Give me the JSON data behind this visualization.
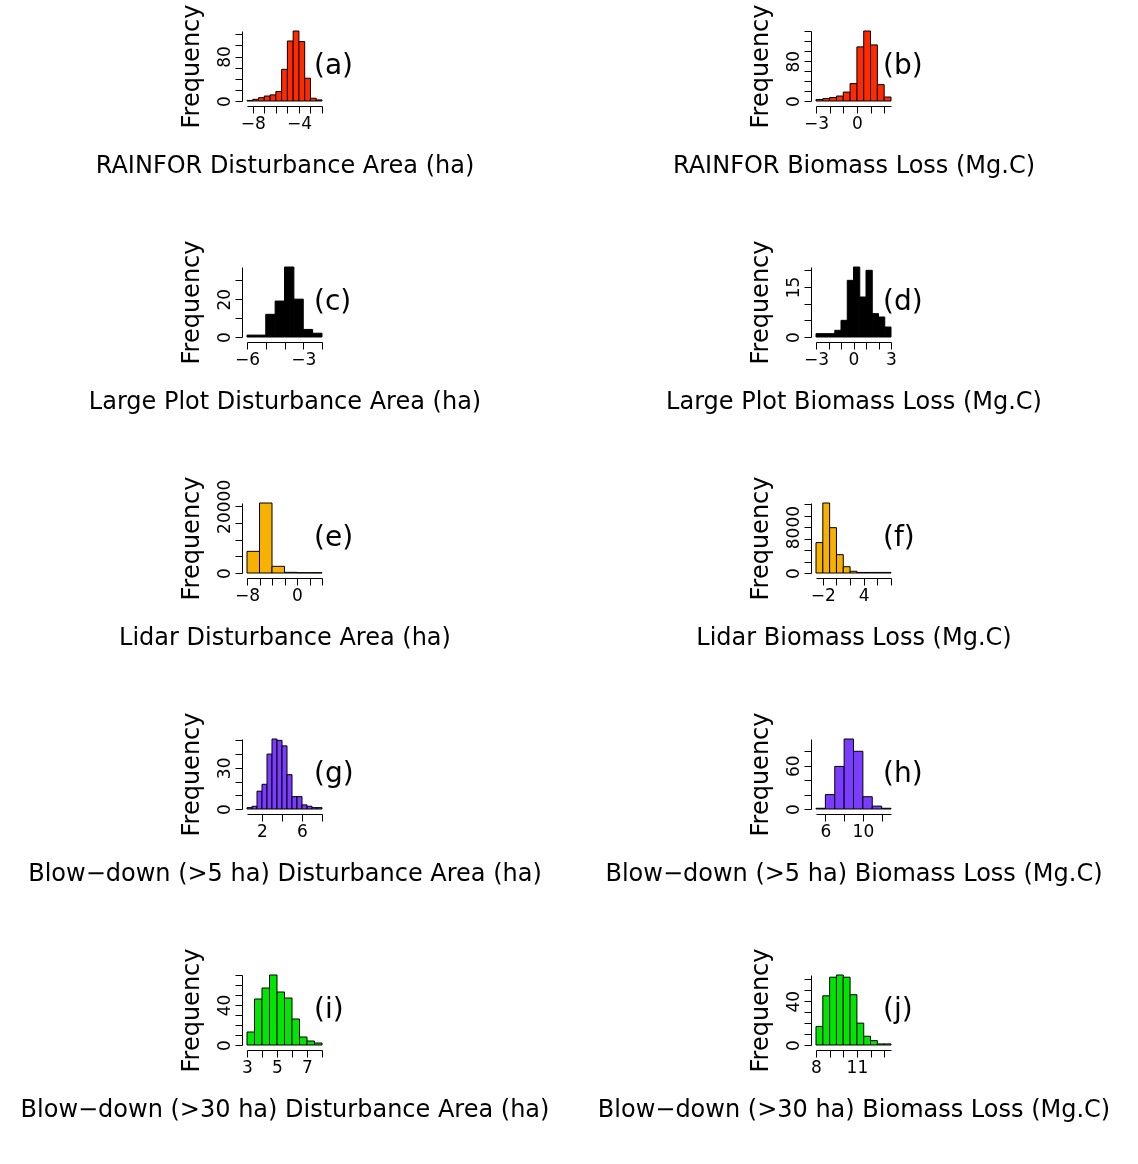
{
  "chart_data": [
    {
      "type": "histogram",
      "xlabel": "RAINFOR Disturbance Area (ha)",
      "ylabel": "Frequency",
      "annotations": [
        "(a)"
      ],
      "bins": [
        -8.5,
        -8,
        -7.5,
        -7,
        -6.5,
        -6,
        -5.5,
        -5,
        -4.5,
        -4,
        -3.5,
        -3,
        -2.5,
        -2
      ],
      "series": [
        {
          "color": "#ff2a00",
          "values": [
            1,
            3,
            6,
            9,
            11,
            17,
            57,
            108,
            126,
            107,
            41,
            5,
            2
          ]
        }
      ],
      "xlim": [
        -8.5,
        -2
      ],
      "ylim": [
        0,
        126
      ],
      "xticks": [
        {
          "value": -8,
          "label": "−8"
        },
        {
          "value": -7,
          "label": null
        },
        {
          "value": -6,
          "label": null
        },
        {
          "value": -5,
          "label": null
        },
        {
          "value": -4,
          "label": "−4"
        },
        {
          "value": -3,
          "label": null
        },
        {
          "value": -2,
          "label": null
        }
      ],
      "yticks": [
        0,
        {
          "value": 20,
          "label": null
        },
        {
          "value": 40,
          "label": null
        },
        {
          "value": 60,
          "label": null
        },
        80,
        {
          "value": 100,
          "label": null
        },
        {
          "value": 120,
          "label": null
        }
      ]
    },
    {
      "type": "histogram",
      "xlabel": "RAINFOR Biomass Loss (Mg.C)",
      "ylabel": "Frequency",
      "annotations": [
        "(b)"
      ],
      "bins": [
        -3,
        -2.5,
        -2,
        -1.5,
        -1,
        -0.5,
        0,
        0.5,
        1,
        1.5,
        2,
        2.5
      ],
      "series": [
        {
          "color": "#ff2a00",
          "values": [
            3,
            5,
            7,
            10,
            18,
            35,
            109,
            141,
            113,
            33,
            8
          ]
        }
      ],
      "xlim": [
        -3,
        2.5
      ],
      "ylim": [
        0,
        141
      ],
      "xticks": [
        {
          "value": -3,
          "label": "−3"
        },
        {
          "value": -2,
          "label": null
        },
        {
          "value": -1,
          "label": null
        },
        0,
        {
          "value": 1,
          "label": null
        },
        {
          "value": 2,
          "label": null
        }
      ],
      "yticks": [
        0,
        {
          "value": 20,
          "label": null
        },
        {
          "value": 40,
          "label": null
        },
        {
          "value": 60,
          "label": null
        },
        80,
        {
          "value": 100,
          "label": null
        },
        {
          "value": 120,
          "label": null
        },
        {
          "value": 140,
          "label": null
        }
      ]
    },
    {
      "type": "histogram",
      "xlabel": "Large Plot Disturbance Area (ha)",
      "ylabel": "Frequency",
      "annotations": [
        "(c)"
      ],
      "bins": [
        -6,
        -5.5,
        -5,
        -4.5,
        -4,
        -3.5,
        -3,
        -2.5,
        -2
      ],
      "series": [
        {
          "color": "#000000",
          "values": [
            1,
            1,
            12,
            19,
            37,
            20,
            4,
            2
          ]
        }
      ],
      "xlim": [
        -6,
        -2
      ],
      "ylim": [
        0,
        37
      ],
      "xticks": [
        {
          "value": -6,
          "label": "−6"
        },
        {
          "value": -5,
          "label": null
        },
        {
          "value": -4,
          "label": null
        },
        {
          "value": -3,
          "label": "−3"
        },
        {
          "value": -2,
          "label": null
        }
      ],
      "yticks": [
        0,
        {
          "value": 10,
          "label": null
        },
        20,
        {
          "value": 30,
          "label": null
        }
      ]
    },
    {
      "type": "histogram",
      "xlabel": "Large Plot Biomass Loss (Mg.C)",
      "ylabel": "Frequency",
      "annotations": [
        "(d)"
      ],
      "bins": [
        -3,
        -2.5,
        -2,
        -1.5,
        -1,
        -0.5,
        0,
        0.5,
        1,
        1.5,
        2,
        2.5,
        3
      ],
      "series": [
        {
          "color": "#000000",
          "values": [
            1,
            1,
            1,
            2,
            5,
            17,
            21,
            12,
            20,
            7,
            6,
            3
          ]
        }
      ],
      "xlim": [
        -3,
        3
      ],
      "ylim": [
        0,
        21
      ],
      "xticks": [
        {
          "value": -3,
          "label": "−3"
        },
        {
          "value": -2,
          "label": null
        },
        {
          "value": -1,
          "label": null
        },
        0,
        {
          "value": 1,
          "label": null
        },
        {
          "value": 2,
          "label": null
        },
        3
      ],
      "yticks": [
        0,
        {
          "value": 5,
          "label": null
        },
        {
          "value": 10,
          "label": null
        },
        15,
        {
          "value": 20,
          "label": null
        }
      ]
    },
    {
      "type": "histogram",
      "xlabel": "Lidar Disturbance Area (ha)",
      "ylabel": "Frequency",
      "annotations": [
        "(e)"
      ],
      "bins": [
        -8,
        -6,
        -4,
        -2,
        0,
        2,
        4
      ],
      "series": [
        {
          "color": "#f7b100",
          "values": [
            6500,
            21000,
            2000,
            200,
            100,
            100
          ]
        }
      ],
      "xlim": [
        -8,
        4
      ],
      "ylim": [
        0,
        21000
      ],
      "xticks": [
        {
          "value": -8,
          "label": "−8"
        },
        {
          "value": -6,
          "label": null
        },
        {
          "value": -4,
          "label": null
        },
        {
          "value": -2,
          "label": null
        },
        0,
        {
          "value": 2,
          "label": null
        },
        {
          "value": 4,
          "label": null
        }
      ],
      "yticks": [
        0,
        {
          "value": 5000,
          "label": null
        },
        {
          "value": 10000,
          "label": null
        },
        {
          "value": 15000,
          "label": null
        },
        20000
      ]
    },
    {
      "type": "histogram",
      "xlabel": "Lidar Biomass Loss (Mg.C)",
      "ylabel": "Frequency",
      "annotations": [
        "(f)"
      ],
      "bins": [
        -3,
        -2,
        -1,
        0,
        1,
        2,
        3,
        4,
        5,
        6,
        7,
        8
      ],
      "series": [
        {
          "color": "#f7b100",
          "values": [
            5300,
            12200,
            7900,
            3200,
            1100,
            300,
            100,
            100,
            100,
            100,
            100
          ]
        }
      ],
      "xlim": [
        -3,
        8
      ],
      "ylim": [
        0,
        12200
      ],
      "xticks": [
        {
          "value": -2,
          "label": "−2"
        },
        {
          "value": 0,
          "label": null
        },
        {
          "value": 2,
          "label": null
        },
        4,
        {
          "value": 6,
          "label": null
        },
        {
          "value": 8,
          "label": null
        }
      ],
      "yticks": [
        0,
        {
          "value": 2000,
          "label": null
        },
        {
          "value": 4000,
          "label": null
        },
        {
          "value": 6000,
          "label": null
        },
        8000,
        {
          "value": 10000,
          "label": null
        },
        {
          "value": 12000,
          "label": null
        }
      ]
    },
    {
      "type": "histogram",
      "xlabel": "Blow−down (>5 ha) Disturbance Area (ha)",
      "ylabel": "Frequency",
      "annotations": [
        "(g)"
      ],
      "bins": [
        0.5,
        1,
        1.5,
        2,
        2.5,
        3,
        3.5,
        4,
        4.5,
        5,
        5.5,
        6,
        6.5,
        7,
        7.5,
        8
      ],
      "series": [
        {
          "color": "#7a3cff",
          "values": [
            1,
            2,
            13,
            18,
            40,
            51,
            50,
            46,
            25,
            9,
            9,
            3,
            2,
            1,
            1
          ]
        }
      ],
      "xlim": [
        0.5,
        8
      ],
      "ylim": [
        0,
        51
      ],
      "xticks": [
        2,
        {
          "value": 4,
          "label": null
        },
        6,
        {
          "value": 8,
          "label": null
        }
      ],
      "yticks": [
        0,
        {
          "value": 10,
          "label": null
        },
        {
          "value": 20,
          "label": null
        },
        30,
        {
          "value": 40,
          "label": null
        },
        {
          "value": 50,
          "label": null
        }
      ]
    },
    {
      "type": "histogram",
      "xlabel": "Blow−down (>5 ha) Biomass Loss (Mg.C)",
      "ylabel": "Frequency",
      "annotations": [
        "(h)"
      ],
      "bins": [
        5,
        6,
        7,
        8,
        9,
        10,
        11,
        12,
        13
      ],
      "series": [
        {
          "color": "#7a3cff",
          "values": [
            1,
            20,
            59,
            97,
            80,
            17,
            4,
            1
          ]
        }
      ],
      "xlim": [
        5,
        13
      ],
      "ylim": [
        0,
        97
      ],
      "xticks": [
        6,
        {
          "value": 8,
          "label": null
        },
        10,
        {
          "value": 12,
          "label": null
        }
      ],
      "yticks": [
        0,
        {
          "value": 20,
          "label": null
        },
        {
          "value": 40,
          "label": null
        },
        60,
        {
          "value": 80,
          "label": null
        }
      ]
    },
    {
      "type": "histogram",
      "xlabel": "Blow−down (>30 ha) Disturbance Area (ha)",
      "ylabel": "Frequency",
      "annotations": [
        "(i)"
      ],
      "bins": [
        3,
        3.5,
        4,
        4.5,
        5,
        5.5,
        6,
        6.5,
        7,
        7.5,
        8
      ],
      "series": [
        {
          "color": "#00e600",
          "values": [
            13,
            46,
            57,
            70,
            53,
            47,
            26,
            8,
            4,
            2
          ]
        }
      ],
      "xlim": [
        3,
        8
      ],
      "ylim": [
        0,
        70
      ],
      "xticks": [
        3,
        {
          "value": 4,
          "label": null
        },
        5,
        {
          "value": 6,
          "label": null
        },
        7,
        {
          "value": 8,
          "label": null
        }
      ],
      "yticks": [
        0,
        {
          "value": 10,
          "label": null
        },
        {
          "value": 20,
          "label": null
        },
        {
          "value": 30,
          "label": null
        },
        40,
        {
          "value": 50,
          "label": null
        },
        {
          "value": 60,
          "label": null
        },
        {
          "value": 70,
          "label": null
        }
      ]
    },
    {
      "type": "histogram",
      "xlabel": "Blow−down (>30 ha) Biomass Loss (Mg.C)",
      "ylabel": "Frequency",
      "annotations": [
        "(j)"
      ],
      "bins": [
        8,
        8.5,
        9,
        9.5,
        10,
        10.5,
        11,
        11.5,
        12,
        12.5,
        13,
        13.5
      ],
      "series": [
        {
          "color": "#00e600",
          "values": [
            17,
            45,
            62,
            64,
            62,
            46,
            20,
            8,
            4,
            1,
            1
          ]
        }
      ],
      "xlim": [
        8,
        13.5
      ],
      "ylim": [
        0,
        64
      ],
      "xticks": [
        8,
        {
          "value": 9,
          "label": null
        },
        {
          "value": 10,
          "label": null
        },
        11,
        {
          "value": 12,
          "label": null
        },
        {
          "value": 13,
          "label": null
        }
      ],
      "yticks": [
        0,
        {
          "value": 10,
          "label": null
        },
        {
          "value": 20,
          "label": null
        },
        {
          "value": 30,
          "label": null
        },
        40,
        {
          "value": 50,
          "label": null
        },
        {
          "value": 60,
          "label": null
        }
      ]
    }
  ]
}
